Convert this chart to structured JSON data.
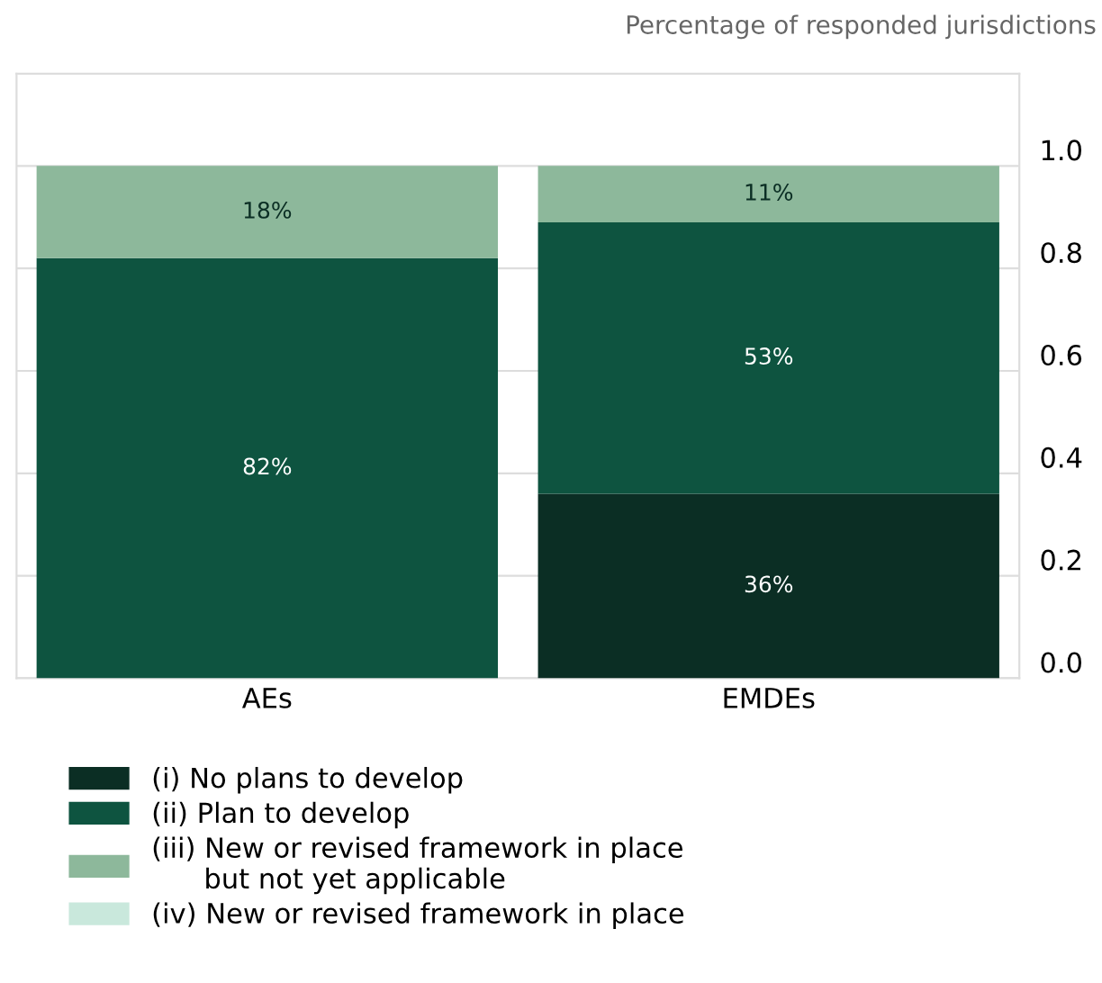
{
  "chart_data": {
    "type": "bar",
    "stacked": true,
    "title": "Percentage of responded jurisdictions",
    "categories": [
      "AEs",
      "EMDEs"
    ],
    "series": [
      {
        "name": "(i) No plans to develop",
        "color": "#0b2e24",
        "values": [
          0,
          0.36
        ],
        "value_labels": [
          null,
          "36%"
        ]
      },
      {
        "name": "(ii) Plan to develop",
        "color": "#0e5440",
        "values": [
          0.82,
          0.53
        ],
        "value_labels": [
          "82%",
          "53%"
        ]
      },
      {
        "name": "(iii) New or revised framework in place\n      but not yet applicable",
        "color": "#8db89b",
        "values": [
          0.18,
          0.11
        ],
        "value_labels": [
          "18%",
          "11%"
        ]
      },
      {
        "name": "(iv) New or revised framework in place",
        "color": "#c9e8dc",
        "values": [
          0,
          0
        ],
        "value_labels": [
          null,
          null
        ]
      }
    ],
    "ylim": [
      0,
      1.18
    ],
    "yticks": [
      {
        "value": 0,
        "label": "0.0"
      },
      {
        "value": 0.2,
        "label": "0.2"
      },
      {
        "value": 0.4,
        "label": "0.4"
      },
      {
        "value": 0.6,
        "label": "0.6"
      },
      {
        "value": 0.8,
        "label": "0.8"
      },
      {
        "value": 1.0,
        "label": "1.0"
      }
    ],
    "grid": "y",
    "legend": "bottom"
  }
}
